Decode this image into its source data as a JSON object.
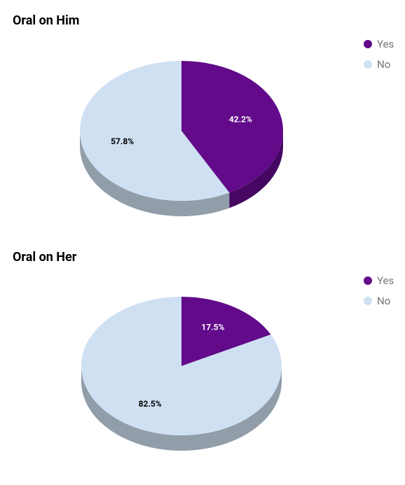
{
  "chart_data": [
    {
      "type": "pie",
      "title": "Oral on Him",
      "categories": [
        "Yes",
        "No"
      ],
      "values": [
        42.2,
        57.8
      ],
      "value_labels": [
        "42.2%",
        "57.8%"
      ],
      "colors": [
        "#620a8a",
        "#cfe0f2"
      ]
    },
    {
      "type": "pie",
      "title": "Oral on Her",
      "categories": [
        "Yes",
        "No"
      ],
      "values": [
        17.5,
        82.5
      ],
      "value_labels": [
        "17.5%",
        "82.5%"
      ],
      "colors": [
        "#620a8a",
        "#cfe0f2"
      ]
    }
  ]
}
